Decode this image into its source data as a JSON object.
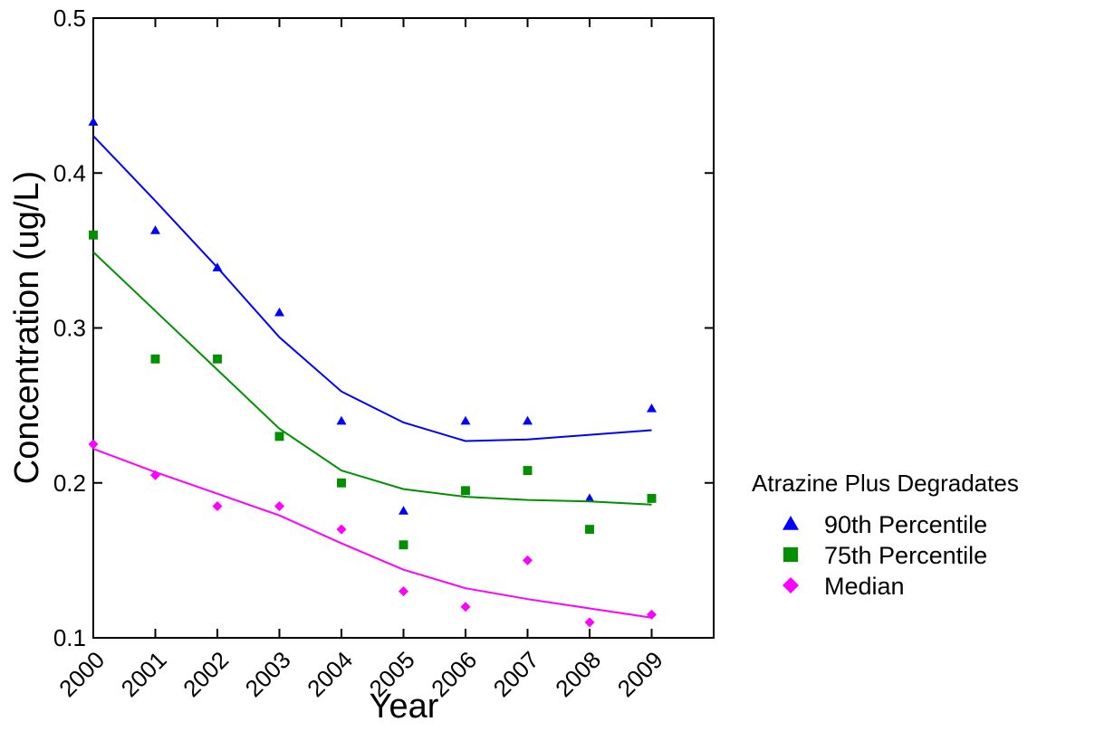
{
  "chart_data": {
    "type": "scatter",
    "title": "",
    "xlabel": "Year",
    "ylabel": "Concentration (ug/L)",
    "x": [
      2000,
      2001,
      2002,
      2003,
      2004,
      2005,
      2006,
      2007,
      2008,
      2009
    ],
    "xticks": [
      "2000",
      "2001",
      "2002",
      "2003",
      "2004",
      "2005",
      "2006",
      "2007",
      "2008",
      "2009"
    ],
    "xlim": [
      2000,
      2010
    ],
    "ylim": [
      0.1,
      0.5
    ],
    "yticks": [
      "0.1",
      "0.2",
      "0.3",
      "0.4",
      "0.5"
    ],
    "grid": false,
    "legend": {
      "title": "Atrazine Plus Degradates",
      "position": "right"
    },
    "series": [
      {
        "name": "90th Percentile",
        "marker": "triangle",
        "color": "#0000ff",
        "values": [
          0.433,
          0.363,
          0.339,
          0.31,
          0.24,
          0.182,
          0.24,
          0.24,
          0.19,
          0.248
        ],
        "trend": [
          0.424,
          0.382,
          0.339,
          0.294,
          0.259,
          0.239,
          0.227,
          0.228,
          0.231,
          0.234
        ]
      },
      {
        "name": "75th Percentile",
        "marker": "square",
        "color": "#009000",
        "values": [
          0.36,
          0.28,
          0.28,
          0.23,
          0.2,
          0.16,
          0.195,
          0.208,
          0.17,
          0.19
        ],
        "trend": [
          0.349,
          0.311,
          0.273,
          0.235,
          0.208,
          0.196,
          0.191,
          0.189,
          0.188,
          0.186
        ]
      },
      {
        "name": "Median",
        "marker": "diamond",
        "color": "#ff00ff",
        "values": [
          0.225,
          0.205,
          0.185,
          0.185,
          0.17,
          0.13,
          0.12,
          0.15,
          0.11,
          0.115
        ],
        "trend": [
          0.222,
          0.207,
          0.193,
          0.179,
          0.161,
          0.144,
          0.132,
          0.125,
          0.119,
          0.113
        ]
      }
    ]
  }
}
